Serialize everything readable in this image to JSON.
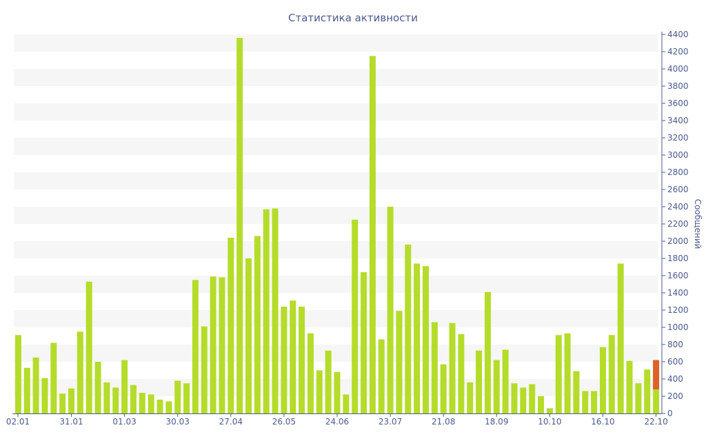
{
  "chart_data": {
    "type": "bar",
    "title": "Статистика активности",
    "ylabel": "Сообщений",
    "xlabel": "",
    "ylim": [
      0,
      4400
    ],
    "y_ticks": [
      0,
      200,
      400,
      600,
      800,
      1000,
      1200,
      1400,
      1600,
      1800,
      2000,
      2200,
      2400,
      2600,
      2800,
      3000,
      3200,
      3400,
      3600,
      3800,
      4000,
      4200,
      4400
    ],
    "x_tick_labels": [
      {
        "label": "02.01",
        "index": 0
      },
      {
        "label": "31.01",
        "index": 6
      },
      {
        "label": "01.03",
        "index": 12
      },
      {
        "label": "30.03",
        "index": 18
      },
      {
        "label": "27.04",
        "index": 24
      },
      {
        "label": "26.05",
        "index": 30
      },
      {
        "label": "24.06",
        "index": 36
      },
      {
        "label": "23.07",
        "index": 42
      },
      {
        "label": "21.08",
        "index": 48
      },
      {
        "label": "18.09",
        "index": 54
      },
      {
        "label": "10.10",
        "index": 60
      },
      {
        "label": "16.10",
        "index": 66
      },
      {
        "label": "22.10",
        "index": 72
      }
    ],
    "y_axis_position": "right",
    "grid": "alternating horizontal bands",
    "colors": {
      "bar": "#b5dc2a",
      "highlight": "#e0602a",
      "text": "#4a5a8c",
      "band": "#f6f6f6"
    },
    "values": [
      910,
      530,
      650,
      410,
      820,
      230,
      290,
      950,
      1530,
      600,
      360,
      300,
      620,
      330,
      240,
      220,
      160,
      140,
      380,
      350,
      1550,
      1010,
      1590,
      1580,
      2040,
      4360,
      1800,
      2060,
      2370,
      2380,
      1240,
      1310,
      1240,
      930,
      500,
      730,
      480,
      220,
      2250,
      1640,
      4150,
      860,
      2400,
      1190,
      1960,
      1740,
      1710,
      1060,
      570,
      1050,
      920,
      360,
      730,
      1410,
      620,
      740,
      350,
      300,
      340,
      200,
      60,
      910,
      930,
      490,
      260,
      260,
      770,
      910,
      1740,
      610,
      350,
      510,
      620
    ],
    "highlight": {
      "index": 72,
      "base": 280,
      "value": 620
    }
  }
}
